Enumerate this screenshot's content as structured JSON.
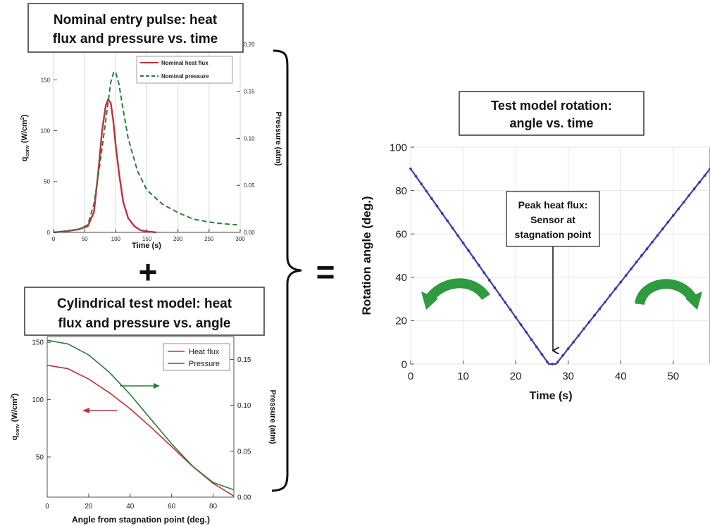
{
  "panels": {
    "pulse_title_1": "Nominal entry pulse: heat",
    "pulse_title_2": "flux and pressure vs. time",
    "model_title_1": "Cylindrical test model: heat",
    "model_title_2": "flux and pressure vs. angle",
    "rotation_title_1": "Test model rotation:",
    "rotation_title_2": "angle vs. time",
    "plus_symbol": "+",
    "equals_symbol": "=",
    "callout_1": "Peak heat flux:",
    "callout_2": "Sensor at",
    "callout_3": "stagnation point"
  },
  "colors": {
    "heat_flux": "#c0303a",
    "pressure": "#2e7a3a",
    "rotation": "#3c3ca8",
    "arrow_green": "#2f9a40"
  },
  "icons": [
    "curved-arrow-icon",
    "down-arrow-icon",
    "right-arrow-icon",
    "left-arrow-icon"
  ],
  "chart_data": [
    {
      "type": "line",
      "xlabel": "Time (s)",
      "ylabel": "q_conv (W/cm^2)",
      "ylabel_main": "q",
      "ylabel_sub": "conv",
      "ylabel_unit": " (W/cm",
      "ylabel_sup": "2",
      "ylabel_close": ")",
      "y2label": "Pressure (atm)",
      "xlim": [
        0,
        300
      ],
      "ylim": [
        0,
        185
      ],
      "y2lim": [
        0,
        0.2
      ],
      "xticks": [
        "0",
        "50",
        "100",
        "150",
        "200",
        "250",
        "300"
      ],
      "yticks": [
        "0",
        "50",
        "100",
        "150"
      ],
      "y2ticks": [
        "0.00",
        "0.05",
        "0.10",
        "0.15",
        "0.20"
      ],
      "legend_position": "top-right",
      "series": [
        {
          "name": "Nominal heat flux",
          "axis": "left",
          "x": [
            0,
            20,
            40,
            55,
            65,
            72,
            78,
            84,
            88,
            92,
            96,
            100,
            106,
            112,
            120,
            130,
            140,
            150,
            165
          ],
          "y": [
            0,
            1,
            3,
            6,
            20,
            60,
            100,
            125,
            131,
            127,
            110,
            85,
            55,
            30,
            14,
            6,
            2,
            1,
            0
          ]
        },
        {
          "name": "Nominal pressure",
          "axis": "right",
          "x": [
            0,
            40,
            55,
            65,
            75,
            85,
            92,
            97,
            100,
            105,
            112,
            120,
            135,
            150,
            175,
            200,
            225,
            250,
            275,
            295
          ],
          "y": [
            0,
            0.003,
            0.008,
            0.03,
            0.075,
            0.125,
            0.16,
            0.171,
            0.17,
            0.158,
            0.13,
            0.1,
            0.065,
            0.045,
            0.03,
            0.021,
            0.014,
            0.011,
            0.009,
            0.008
          ]
        }
      ]
    },
    {
      "type": "line",
      "xlabel": "Angle from stagnation point (deg.)",
      "ylabel": "q_conv (W/cm^2)",
      "ylabel_main": "q",
      "ylabel_sub": "conv",
      "ylabel_unit": " (W/cm",
      "ylabel_sup": "2",
      "ylabel_close": ")",
      "y2label": "Pressure (atm)",
      "xlim": [
        0,
        90
      ],
      "ylim": [
        15,
        155
      ],
      "y2lim": [
        0,
        0.175
      ],
      "xticks": [
        "0",
        "20",
        "40",
        "60",
        "80"
      ],
      "yticks": [
        "50",
        "100",
        "150"
      ],
      "y2ticks": [
        "0.00",
        "0.05",
        "0.10",
        "0.15"
      ],
      "legend_position": "top-right",
      "series": [
        {
          "name": "Heat flux",
          "axis": "left",
          "x": [
            0,
            10,
            20,
            30,
            40,
            50,
            60,
            70,
            80,
            90
          ],
          "y": [
            130,
            127,
            118,
            106,
            92,
            76,
            59,
            42,
            27,
            16
          ]
        },
        {
          "name": "Pressure",
          "axis": "right",
          "x": [
            0,
            10,
            20,
            30,
            40,
            50,
            60,
            70,
            80,
            90
          ],
          "y": [
            0.171,
            0.167,
            0.155,
            0.136,
            0.112,
            0.085,
            0.058,
            0.034,
            0.016,
            0.008
          ]
        }
      ]
    },
    {
      "type": "line",
      "xlabel": "Time (s)",
      "ylabel": "Rotation angle (deg.)",
      "xlim": [
        0,
        57
      ],
      "ylim": [
        0,
        100
      ],
      "xticks": [
        "0",
        "10",
        "20",
        "30",
        "40",
        "50"
      ],
      "yticks": [
        "0",
        "20",
        "40",
        "60",
        "80",
        "100"
      ],
      "series": [
        {
          "name": "",
          "axis": "left",
          "x": [
            0,
            26.3,
            27.7,
            57
          ],
          "y": [
            90,
            0,
            0,
            90
          ]
        }
      ]
    }
  ]
}
